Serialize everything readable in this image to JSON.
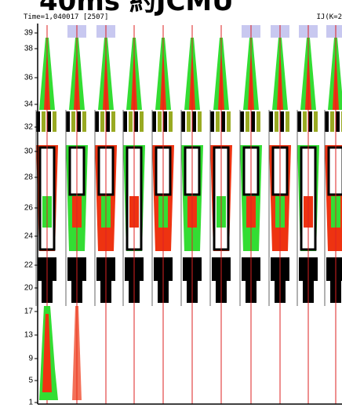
{
  "header": {
    "title": "40ms 約JCMU",
    "time": "Time=1,040017 [2507]",
    "section": "IJ(K=2"
  },
  "y_labels": [
    "39",
    "38",
    "36",
    "34",
    "32",
    "30",
    "28",
    "26",
    "24",
    "22",
    "20",
    "17",
    "13",
    "9",
    "5",
    "1"
  ]
}
